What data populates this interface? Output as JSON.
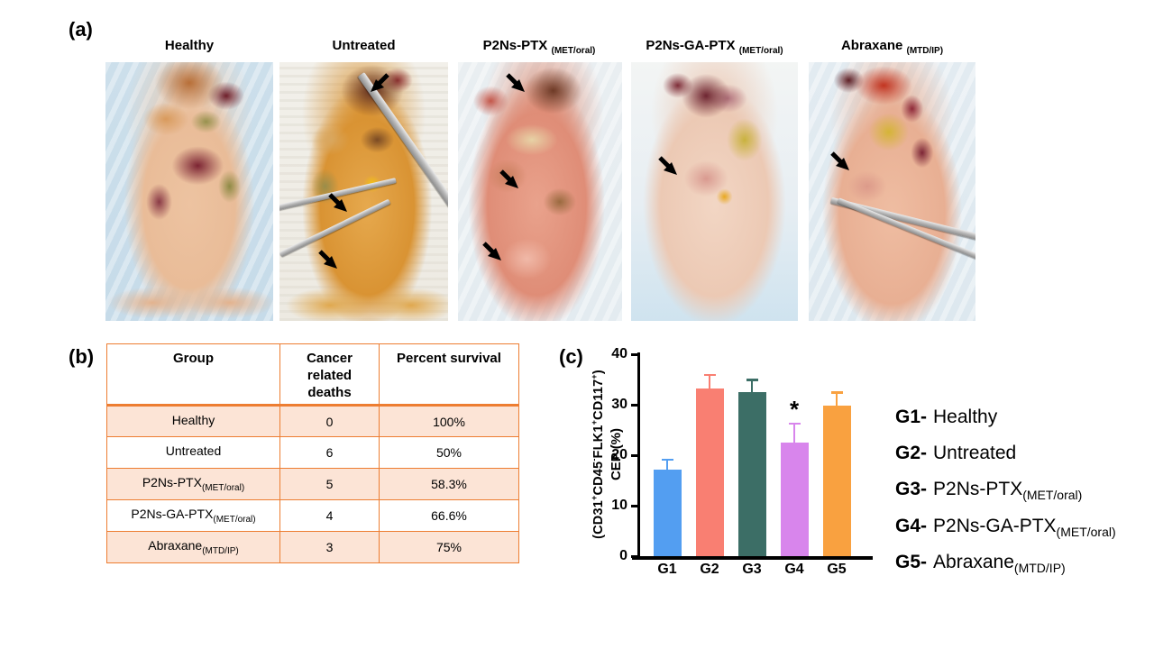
{
  "panel_a": {
    "tag": "(a)",
    "photos": [
      {
        "label": "Healthy",
        "sub": "",
        "arrows": [],
        "tools": false
      },
      {
        "label": "Untreated",
        "sub": "",
        "arrows": [
          [
            52,
            4,
            "dl"
          ],
          [
            28,
            50,
            "dr"
          ],
          [
            22,
            72,
            "dr"
          ]
        ],
        "tools": true
      },
      {
        "label": "P2Ns-PTX",
        "sub": "(MET/oral)",
        "arrows": [
          [
            28,
            4,
            "dr"
          ],
          [
            24,
            41,
            "dr"
          ],
          [
            14,
            69,
            "dr"
          ]
        ],
        "tools": false
      },
      {
        "label": "P2Ns-GA-PTX",
        "sub": "(MET/oral)",
        "arrows": [
          [
            15,
            36,
            "dr"
          ]
        ],
        "tools": false
      },
      {
        "label": "Abraxane",
        "sub": "(MTD/IP)",
        "arrows": [
          [
            12,
            34,
            "dr"
          ]
        ],
        "tools": true
      }
    ]
  },
  "panel_b": {
    "tag": "(b)",
    "table": {
      "border_color": "#ED7D31",
      "shade_color": "#FCE4D6",
      "headers": [
        "Group",
        "Cancer related deaths",
        "Percent survival"
      ],
      "rows": [
        {
          "group": "Healthy",
          "group_sub": "",
          "deaths": "0",
          "survival": "100%"
        },
        {
          "group": "Untreated",
          "group_sub": "",
          "deaths": "6",
          "survival": "50%"
        },
        {
          "group": "P2Ns-PTX",
          "group_sub": "(MET/oral)",
          "deaths": "5",
          "survival": "58.3%"
        },
        {
          "group": "P2Ns-GA-PTX",
          "group_sub": "(MET/oral)",
          "deaths": "4",
          "survival": "66.6%"
        },
        {
          "group": "Abraxane",
          "group_sub": "(MTD/IP)",
          "deaths": "3",
          "survival": "75%"
        }
      ]
    }
  },
  "panel_c": {
    "tag": "(c)",
    "legend": [
      {
        "prefix": "G1-",
        "label": "Healthy",
        "sub": ""
      },
      {
        "prefix": "G2-",
        "label": "Untreated",
        "sub": ""
      },
      {
        "prefix": "G3-",
        "label": "P2Ns-PTX",
        "sub": "(MET/oral)"
      },
      {
        "prefix": "G4-",
        "label": "P2Ns-GA-PTX",
        "sub": "(MET/oral)"
      },
      {
        "prefix": "G5-",
        "label": "Abraxane",
        "sub": "(MTD/IP)"
      }
    ]
  },
  "chart_data": {
    "type": "bar",
    "title": "",
    "xlabel": "",
    "ylabel": "CEP (%) (CD31+CD45-FLK1+CD117+)",
    "ylabel_line1": "CEP (%)",
    "ylabel_line2_segments": [
      {
        "text": "(CD31",
        "sup": "+"
      },
      {
        "text": "CD45",
        "sup": "-"
      },
      {
        "text": "FLK1",
        "sup": "+"
      },
      {
        "text": "CD117",
        "sup": "+"
      },
      {
        "text": ")",
        "sup": ""
      }
    ],
    "categories": [
      "G1",
      "G2",
      "G3",
      "G4",
      "G5"
    ],
    "values": [
      17.2,
      33.2,
      32.5,
      22.5,
      29.8
    ],
    "errors_plus": [
      1.7,
      2.5,
      2.2,
      3.5,
      2.4
    ],
    "bar_colors": [
      "#539EF1",
      "#F97F72",
      "#3C6E66",
      "#D885EC",
      "#F9A140"
    ],
    "axis_color": "#000000",
    "ylim": [
      0,
      40
    ],
    "yticks": [
      0,
      10,
      20,
      30,
      40
    ],
    "grid": false,
    "annotations": [
      {
        "category": "G4",
        "text": "*"
      }
    ],
    "legend_position": "right-outside"
  }
}
